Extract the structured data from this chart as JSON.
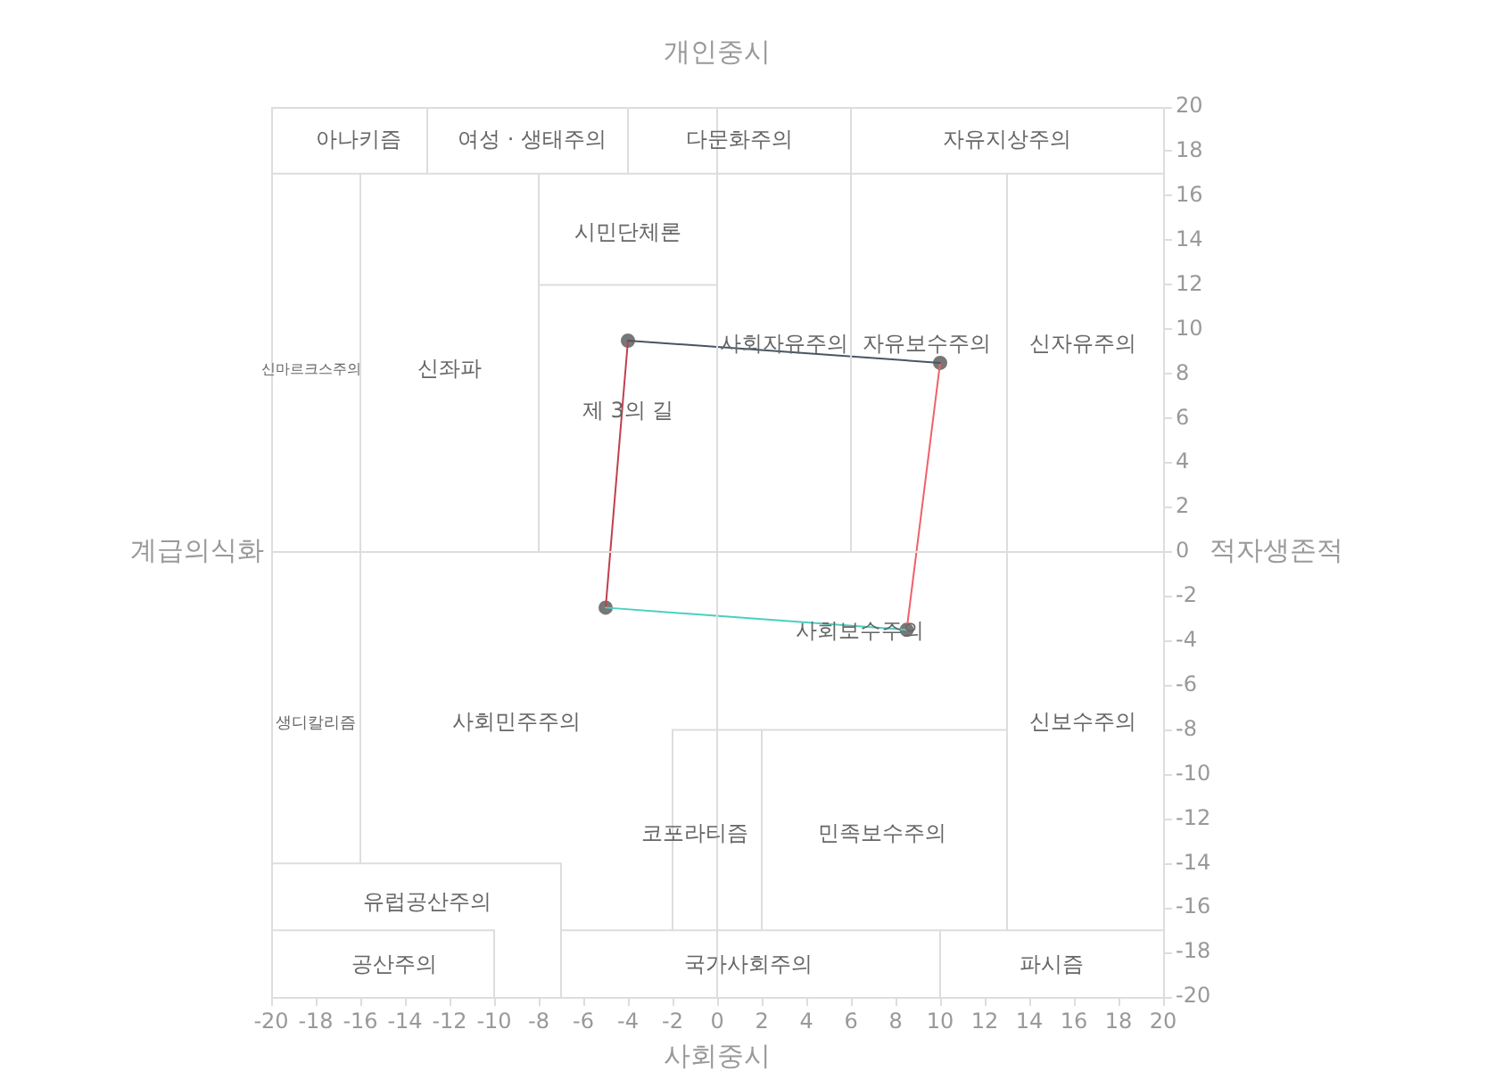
{
  "chart_data": {
    "type": "scatter",
    "title": "개인중시",
    "xlabel": "사회중시",
    "ylabel": "계급의식화",
    "y2label": "적자생존적",
    "xlim": [
      -20,
      20
    ],
    "xticks": [
      -20,
      -18,
      -16,
      -14,
      -12,
      -10,
      -8,
      -6,
      -4,
      -2,
      0,
      2,
      4,
      6,
      8,
      10,
      12,
      14,
      16,
      18,
      20
    ],
    "ylim": [
      -20,
      20
    ],
    "yticks": [
      -20,
      -18,
      -16,
      -14,
      -12,
      -10,
      -8,
      -6,
      -4,
      -2,
      0,
      2,
      4,
      6,
      8,
      10,
      12,
      14,
      16,
      18,
      20
    ],
    "series": [
      {
        "type": "line",
        "color": "#dddddd",
        "marker": "none",
        "x": [
          -20,
          20
        ],
        "values": [
          17,
          17
        ]
      },
      {
        "type": "line",
        "color": "#dddddd",
        "marker": "none",
        "x": [
          -13,
          -13
        ],
        "values": [
          20,
          17
        ]
      },
      {
        "type": "line",
        "color": "#dddddd",
        "marker": "none",
        "x": [
          -4,
          -4
        ],
        "values": [
          20,
          17
        ]
      },
      {
        "type": "line",
        "color": "#dddddd",
        "marker": "none",
        "x": [
          6,
          6
        ],
        "values": [
          20,
          0
        ]
      },
      {
        "type": "line",
        "color": "#dddddd",
        "marker": "none",
        "x": [
          -16,
          -16
        ],
        "values": [
          17,
          -14
        ]
      },
      {
        "type": "line",
        "color": "#dddddd",
        "marker": "none",
        "x": [
          -8,
          -8
        ],
        "values": [
          17,
          0
        ]
      },
      {
        "type": "line",
        "color": "#dddddd",
        "marker": "none",
        "x": [
          -8,
          0
        ],
        "values": [
          12,
          12
        ]
      },
      {
        "type": "line",
        "color": "#dddddd",
        "marker": "none",
        "x": [
          -20,
          20
        ],
        "values": [
          0,
          0
        ]
      },
      {
        "type": "line",
        "color": "#dddddd",
        "marker": "none",
        "x": [
          0,
          0
        ],
        "values": [
          20,
          -20
        ]
      },
      {
        "type": "line",
        "color": "#dddddd",
        "marker": "none",
        "x": [
          13,
          13
        ],
        "values": [
          17,
          -17
        ]
      },
      {
        "type": "line",
        "color": "#dddddd",
        "marker": "none",
        "x": [
          -2,
          13
        ],
        "values": [
          -8,
          -8
        ]
      },
      {
        "type": "line",
        "color": "#dddddd",
        "marker": "none",
        "x": [
          -2,
          -2
        ],
        "values": [
          -8,
          -17
        ]
      },
      {
        "type": "line",
        "color": "#dddddd",
        "marker": "none",
        "x": [
          2,
          2
        ],
        "values": [
          -8,
          -17
        ]
      },
      {
        "type": "line",
        "color": "#dddddd",
        "marker": "none",
        "x": [
          -20,
          -7
        ],
        "values": [
          -14,
          -14
        ]
      },
      {
        "type": "line",
        "color": "#dddddd",
        "marker": "none",
        "x": [
          -7,
          -7
        ],
        "values": [
          -14,
          -20
        ]
      },
      {
        "type": "line",
        "color": "#dddddd",
        "marker": "none",
        "x": [
          -20,
          -10
        ],
        "values": [
          -17,
          -17
        ]
      },
      {
        "type": "line",
        "color": "#dddddd",
        "marker": "none",
        "x": [
          -10,
          -10
        ],
        "values": [
          -17,
          -20
        ]
      },
      {
        "type": "line",
        "color": "#dddddd",
        "marker": "none",
        "x": [
          -7,
          20
        ],
        "values": [
          -17,
          -17
        ]
      },
      {
        "type": "line",
        "color": "#dddddd",
        "marker": "none",
        "x": [
          10,
          10
        ],
        "values": [
          -17,
          -20
        ]
      },
      {
        "type": "line",
        "color": "#4a5563",
        "marker": "none",
        "x": [
          -4,
          10
        ],
        "values": [
          9.5,
          8.5
        ]
      },
      {
        "type": "line",
        "color": "#f0606a",
        "marker": "none",
        "x": [
          10,
          8.5
        ],
        "values": [
          8.5,
          -3.5
        ]
      },
      {
        "type": "line",
        "color": "#48d0c0",
        "marker": "none",
        "x": [
          8.5,
          -5
        ],
        "values": [
          -3.5,
          -2.5
        ]
      },
      {
        "type": "line",
        "color": "#c0404f",
        "marker": "none",
        "x": [
          -5,
          -4
        ],
        "values": [
          -2.5,
          9.5
        ]
      },
      {
        "type": "scatter",
        "color": "#777777",
        "marker": "circle",
        "x": [
          -4,
          10,
          8.5,
          -5
        ],
        "values": [
          9.5,
          8.5,
          -3.5,
          -2.5
        ]
      }
    ],
    "annotations": [
      "아나키즘",
      "여성 · 생태주의",
      "다문화주의",
      "자유지상주의",
      "시민단체론",
      "신마르크스주의",
      "신좌파",
      "사회자유주의",
      "자유보수주의",
      "신자유주의",
      "제 3의 길",
      "사회보수주의",
      "생디칼리즘",
      "사회민주주의",
      "신보수주의",
      "코포라티즘",
      "민족보수주의",
      "유럽공산주의",
      "공산주의",
      "국가사회주의",
      "파시즘"
    ]
  }
}
